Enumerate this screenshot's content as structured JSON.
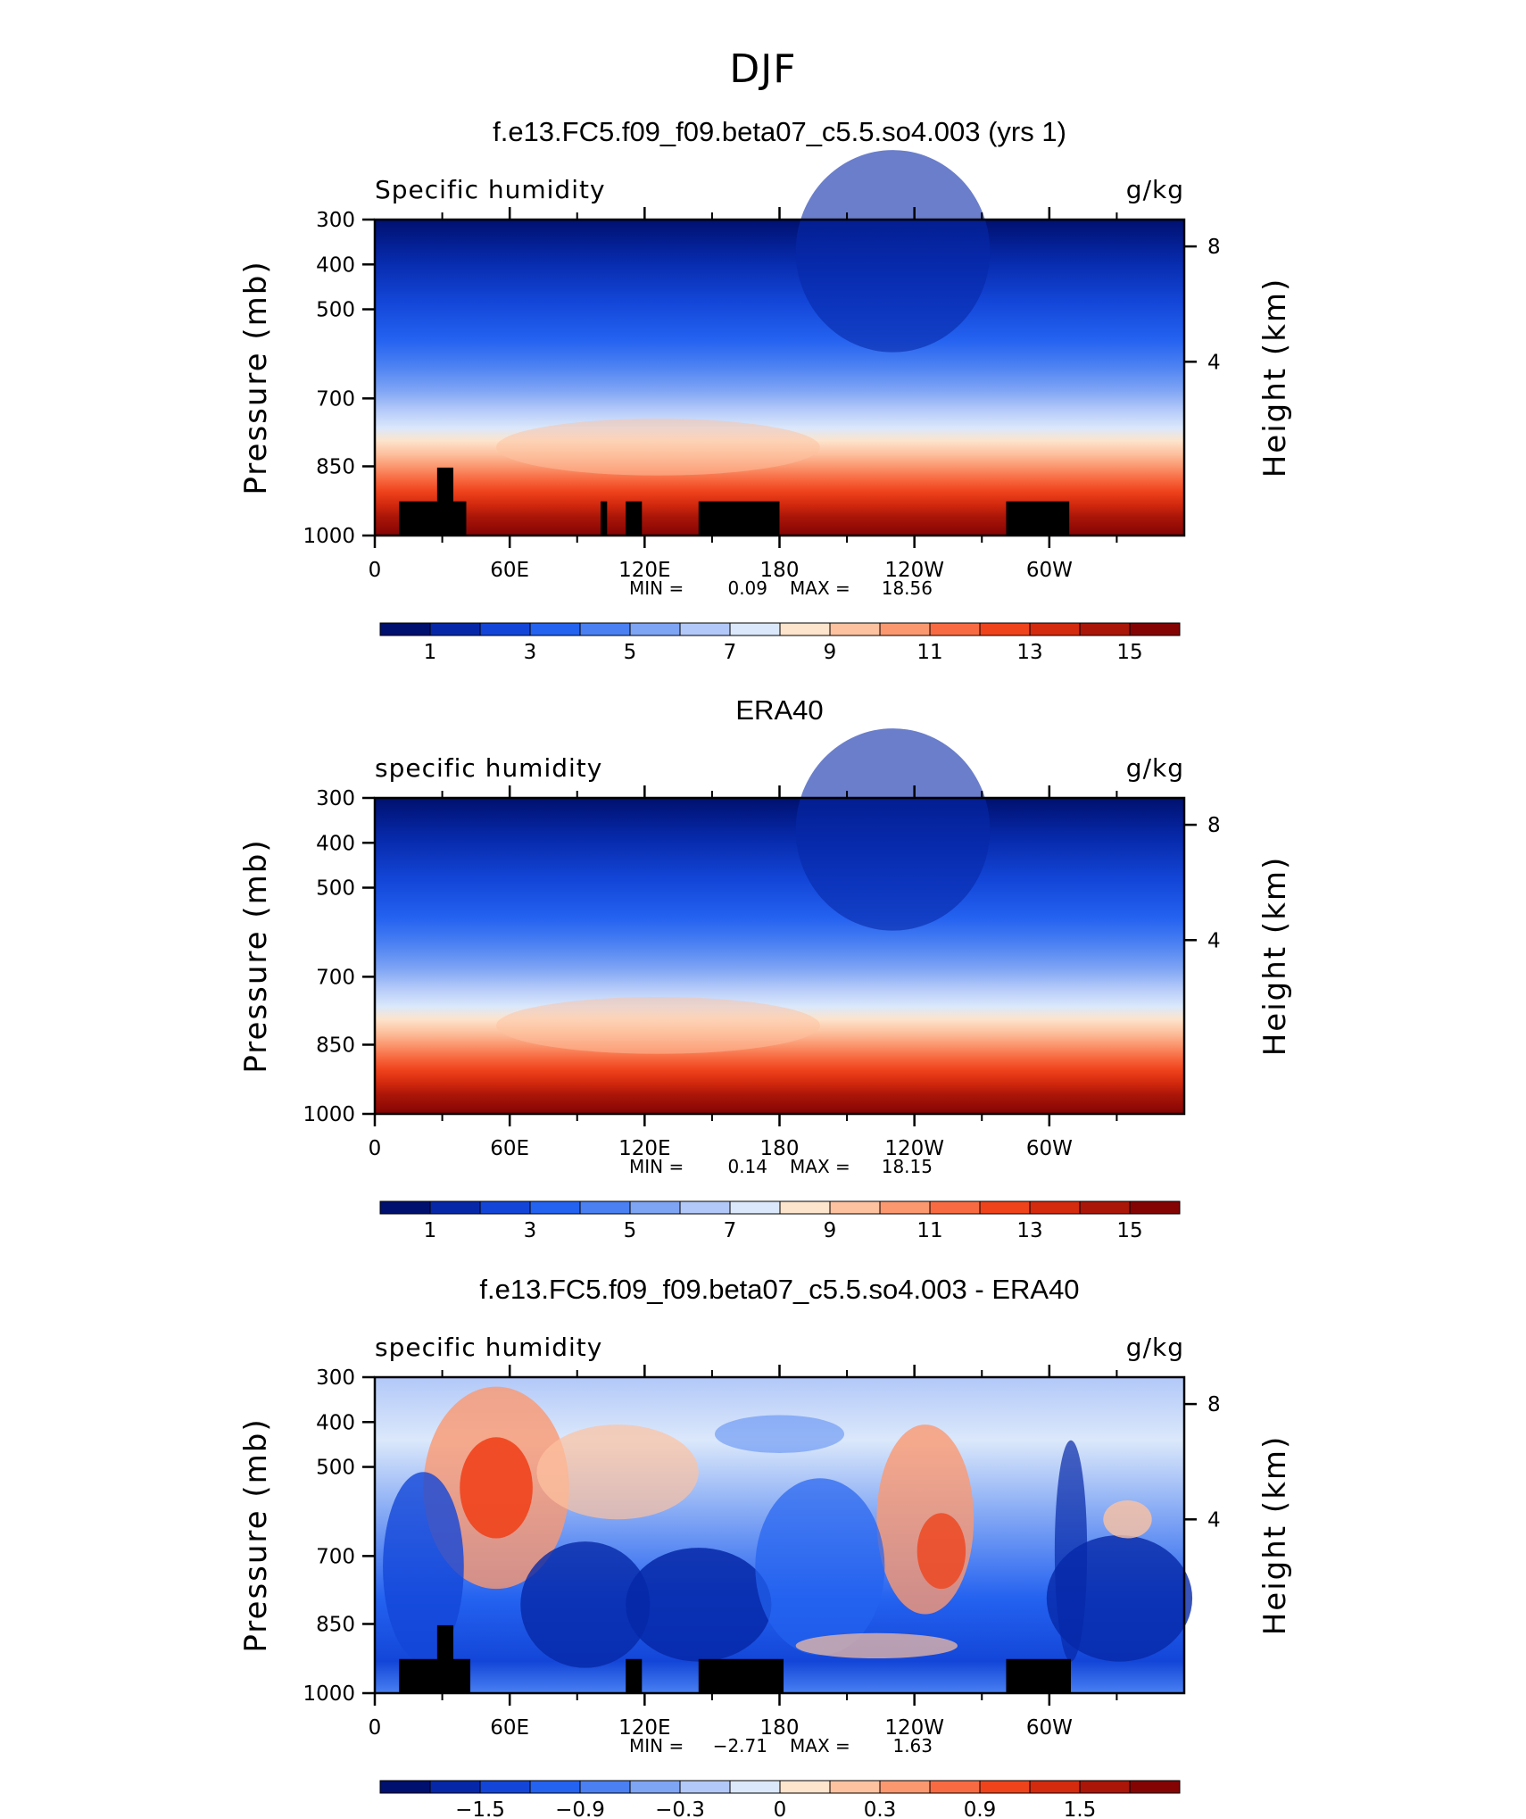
{
  "page": {
    "title": "DJF",
    "left_axis_label": "Pressure (mb)",
    "right_axis_label": "Height (km)",
    "stat_min_label": "MIN =",
    "stat_max_label": "MAX ="
  },
  "chart_data": [
    {
      "type": "heatmap",
      "title": "f.e13.FC5.f09_f09.beta07_c5.5.so4.003 (yrs 1)",
      "variable_label": "Specific humidity",
      "units": "g/kg",
      "ylabel": "Pressure (mb)",
      "y2label": "Height (km)",
      "x_ticks": [
        "0",
        "60E",
        "120E",
        "180",
        "120W",
        "60W"
      ],
      "y_ticks": [
        "300",
        "400",
        "500",
        "700",
        "850",
        "1000"
      ],
      "y2_ticks": [
        "8",
        "4"
      ],
      "min": "0.09",
      "max": "18.56",
      "colorbar_labels": [
        "1",
        "3",
        "5",
        "7",
        "9",
        "11",
        "13",
        "15"
      ]
    },
    {
      "type": "heatmap",
      "title": "ERA40",
      "variable_label": "specific humidity",
      "units": "g/kg",
      "ylabel": "Pressure (mb)",
      "y2label": "Height (km)",
      "x_ticks": [
        "0",
        "60E",
        "120E",
        "180",
        "120W",
        "60W"
      ],
      "y_ticks": [
        "300",
        "400",
        "500",
        "700",
        "850",
        "1000"
      ],
      "y2_ticks": [
        "8",
        "4"
      ],
      "min": "0.14",
      "max": "18.15",
      "colorbar_labels": [
        "1",
        "3",
        "5",
        "7",
        "9",
        "11",
        "13",
        "15"
      ]
    },
    {
      "type": "heatmap",
      "title": "f.e13.FC5.f09_f09.beta07_c5.5.so4.003 - ERA40",
      "variable_label": "specific humidity",
      "units": "g/kg",
      "ylabel": "Pressure (mb)",
      "y2label": "Height (km)",
      "x_ticks": [
        "0",
        "60E",
        "120E",
        "180",
        "120W",
        "60W"
      ],
      "y_ticks": [
        "300",
        "400",
        "500",
        "700",
        "850",
        "1000"
      ],
      "y2_ticks": [
        "8",
        "4"
      ],
      "min": "−2.71",
      "max": "1.63",
      "colorbar_labels": [
        "−1.5",
        "−0.9",
        "−0.3",
        "0",
        "0.3",
        "0.9",
        "1.5"
      ]
    }
  ],
  "colormap": [
    "#00106e",
    "#0628a8",
    "#1346d8",
    "#2462f0",
    "#4a80f2",
    "#7ea4f4",
    "#b2c8f8",
    "#dbe8fb",
    "#fde4cc",
    "#fdc2a0",
    "#fb9870",
    "#f86b42",
    "#ef431c",
    "#d42a0e",
    "#aa1608",
    "#840404"
  ]
}
